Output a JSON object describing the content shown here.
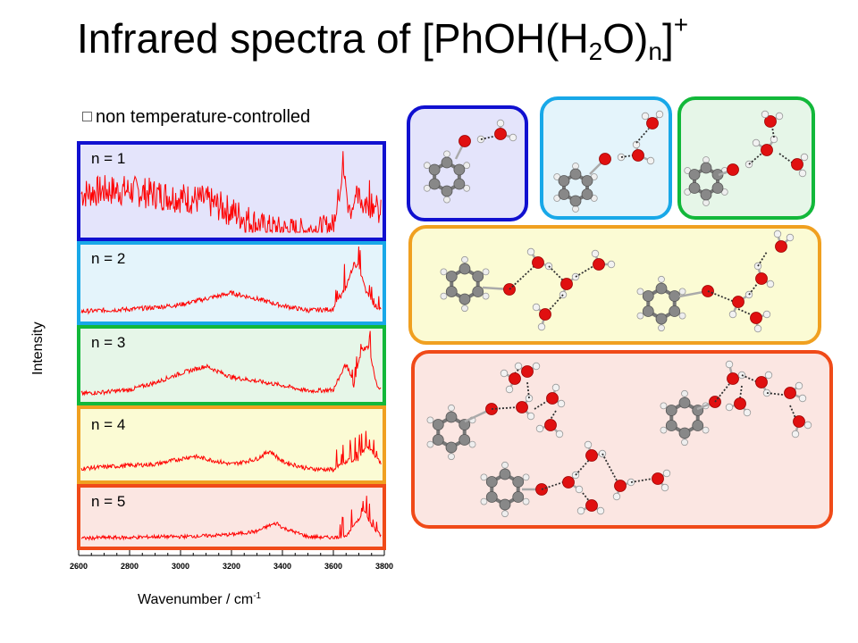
{
  "title": {
    "main": "Infrared spectra of [PhOH(H",
    "sub1": "2",
    "mid": "O)",
    "sub2": "n",
    "close": "]",
    "sup": "+"
  },
  "note": "non temperature-controlled",
  "note_icon": "bullet-square-icon",
  "colors": {
    "spectrum": "#ff0000",
    "n1": "#1010d0",
    "n2": "#18a8e8",
    "n3": "#12b83a",
    "n4": "#f0a020",
    "n5": "#f04a18",
    "bg1": "#e4e4fb",
    "bg2": "#e4f4fb",
    "bg3": "#e6f6e8",
    "bg4": "#fbfbd4",
    "bg5": "#fbe6e2"
  },
  "chart_data": {
    "type": "line",
    "title": "Infrared spectra of [PhOH(H2O)n]+",
    "xlabel": "Wavenumber / cm-1",
    "ylabel": "Intensity",
    "xlim": [
      2600,
      3800
    ],
    "x_ticks": [
      "2600",
      "2800",
      "3000",
      "3200",
      "3400",
      "3600",
      "3800"
    ],
    "grid": false,
    "series": [
      {
        "name": "n = 1",
        "x": [
          2600,
          2700,
          2800,
          2900,
          3000,
          3100,
          3200,
          3300,
          3400,
          3500,
          3600,
          3640,
          3660,
          3700,
          3730,
          3760,
          3800
        ],
        "y": [
          0.55,
          0.6,
          0.6,
          0.55,
          0.5,
          0.45,
          0.3,
          0.12,
          0.05,
          0.03,
          0.1,
          0.9,
          0.3,
          0.5,
          0.35,
          0.4,
          0.1
        ]
      },
      {
        "name": "n = 2",
        "x": [
          2600,
          2700,
          2800,
          2900,
          3000,
          3100,
          3200,
          3300,
          3400,
          3500,
          3600,
          3650,
          3680,
          3700,
          3730,
          3760,
          3800
        ],
        "y": [
          0.08,
          0.1,
          0.12,
          0.15,
          0.2,
          0.3,
          0.4,
          0.3,
          0.18,
          0.1,
          0.12,
          0.5,
          0.9,
          0.85,
          0.4,
          0.2,
          0.05
        ]
      },
      {
        "name": "n = 3",
        "x": [
          2600,
          2700,
          2800,
          2900,
          3000,
          3100,
          3200,
          3300,
          3400,
          3500,
          3600,
          3650,
          3680,
          3710,
          3740,
          3770,
          3800
        ],
        "y": [
          0.05,
          0.08,
          0.12,
          0.25,
          0.42,
          0.55,
          0.35,
          0.28,
          0.2,
          0.1,
          0.12,
          0.6,
          0.2,
          0.85,
          0.9,
          0.2,
          0.05
        ]
      },
      {
        "name": "n = 4",
        "x": [
          2600,
          2700,
          2800,
          2900,
          3000,
          3050,
          3100,
          3200,
          3300,
          3350,
          3400,
          3500,
          3600,
          3650,
          3700,
          3730,
          3760,
          3800
        ],
        "y": [
          0.12,
          0.15,
          0.18,
          0.2,
          0.3,
          0.35,
          0.3,
          0.2,
          0.3,
          0.45,
          0.25,
          0.12,
          0.1,
          0.25,
          0.3,
          0.55,
          0.4,
          0.1
        ]
      },
      {
        "name": "n = 5",
        "x": [
          2600,
          2700,
          2800,
          2900,
          3000,
          3100,
          3200,
          3300,
          3350,
          3380,
          3400,
          3500,
          3600,
          3650,
          3700,
          3720,
          3750,
          3800
        ],
        "y": [
          0.06,
          0.08,
          0.08,
          0.1,
          0.1,
          0.12,
          0.15,
          0.22,
          0.35,
          0.4,
          0.3,
          0.1,
          0.08,
          0.12,
          0.5,
          0.7,
          0.35,
          0.05
        ]
      }
    ]
  },
  "panels": [
    {
      "label": "n = 1"
    },
    {
      "label": "n = 2"
    },
    {
      "label": "n = 3"
    },
    {
      "label": "n = 4"
    },
    {
      "label": "n = 5"
    }
  ],
  "structures": [
    {
      "name": "structure-n1"
    },
    {
      "name": "structure-n2"
    },
    {
      "name": "structure-n3"
    },
    {
      "name": "structures-n4"
    },
    {
      "name": "structures-n5"
    }
  ]
}
